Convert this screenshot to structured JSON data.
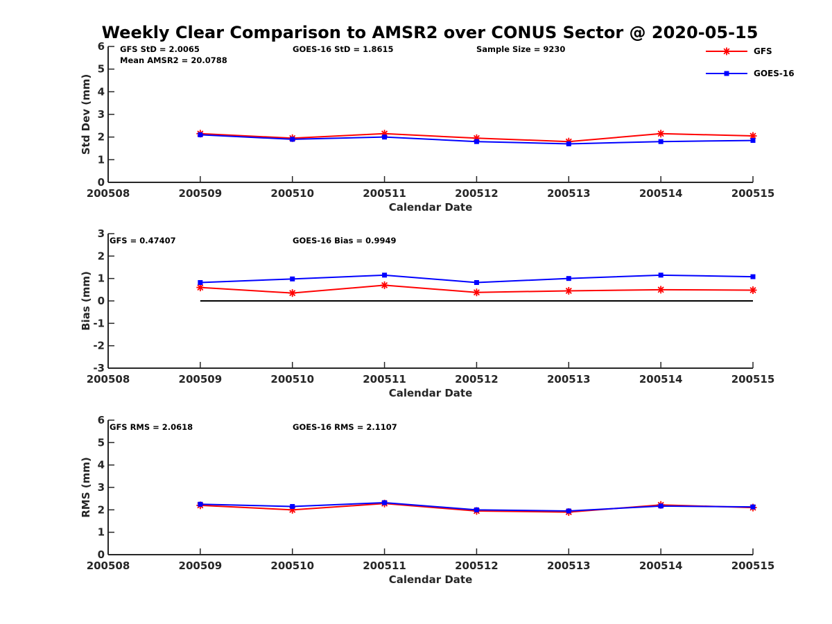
{
  "chart_data": {
    "type": "line",
    "title": "Weekly Clear Comparison to AMSR2 over CONUS Sector @ 2020-05-15",
    "legend": {
      "placement": "top-right",
      "entries": [
        {
          "name": "GFS",
          "color": "#ff0000",
          "marker": "asterisk"
        },
        {
          "name": "GOES-16",
          "color": "#0000ff",
          "marker": "square"
        }
      ]
    },
    "panels": [
      {
        "id": "stddev",
        "ylabel": "Std Dev (mm)",
        "xlabel": "Calendar Date",
        "ylim": [
          0,
          6
        ],
        "yticks": [
          "0",
          "1",
          "2",
          "3",
          "4",
          "5",
          "6"
        ],
        "xticks": [
          "200508",
          "200509",
          "200510",
          "200511",
          "200512",
          "200513",
          "200514",
          "200515"
        ],
        "xlim": [
          0,
          7
        ],
        "zero_line": false,
        "annotations": [
          {
            "text": "GFS StD = 2.0065",
            "col": "a"
          },
          {
            "text": "GOES-16 StD = 1.8615",
            "col": "b"
          },
          {
            "text": "Sample Size = 9230",
            "col": "c"
          },
          {
            "text": "Mean AMSR2 = 20.0788",
            "col": "a2"
          }
        ],
        "series": [
          {
            "name": "GFS",
            "color": "#ff0000",
            "marker": "asterisk",
            "x": [
              1,
              2,
              3,
              4,
              5,
              6,
              7
            ],
            "values": [
              2.15,
              1.95,
              2.15,
              1.95,
              1.8,
              2.15,
              2.05
            ]
          },
          {
            "name": "GOES-16",
            "color": "#0000ff",
            "marker": "square",
            "x": [
              1,
              2,
              3,
              4,
              5,
              6,
              7
            ],
            "values": [
              2.1,
              1.9,
              2.0,
              1.8,
              1.7,
              1.8,
              1.85
            ]
          }
        ]
      },
      {
        "id": "bias",
        "ylabel": "Bias (mm)",
        "xlabel": "Calendar Date",
        "ylim": [
          -3,
          3
        ],
        "yticks": [
          "-3",
          "-2",
          "-1",
          "0",
          "1",
          "2",
          "3"
        ],
        "xticks": [
          "200508",
          "200509",
          "200510",
          "200511",
          "200512",
          "200513",
          "200514",
          "200515"
        ],
        "xlim": [
          0,
          7
        ],
        "zero_line": true,
        "annotations": [
          {
            "text": "GFS = 0.47407",
            "col": "a"
          },
          {
            "text": "GOES-16 Bias  = 0.9949",
            "col": "b"
          }
        ],
        "series": [
          {
            "name": "GFS",
            "color": "#ff0000",
            "marker": "asterisk",
            "x": [
              1,
              2,
              3,
              4,
              5,
              6,
              7
            ],
            "values": [
              0.6,
              0.35,
              0.7,
              0.38,
              0.45,
              0.5,
              0.48
            ]
          },
          {
            "name": "GOES-16",
            "color": "#0000ff",
            "marker": "square",
            "x": [
              1,
              2,
              3,
              4,
              5,
              6,
              7
            ],
            "values": [
              0.82,
              0.98,
              1.15,
              0.82,
              1.0,
              1.15,
              1.08
            ]
          }
        ]
      },
      {
        "id": "rms",
        "ylabel": "RMS (mm)",
        "xlabel": "Calendar Date",
        "ylim": [
          0,
          6
        ],
        "yticks": [
          "0",
          "1",
          "2",
          "3",
          "4",
          "5",
          "6"
        ],
        "xticks": [
          "200508",
          "200509",
          "200510",
          "200511",
          "200512",
          "200513",
          "200514",
          "200515"
        ],
        "xlim": [
          0,
          7
        ],
        "zero_line": false,
        "annotations": [
          {
            "text": "GFS RMS = 2.0618",
            "col": "a"
          },
          {
            "text": "GOES-16 RMS = 2.1107",
            "col": "b"
          }
        ],
        "series": [
          {
            "name": "GFS",
            "color": "#ff0000",
            "marker": "asterisk",
            "x": [
              1,
              2,
              3,
              4,
              5,
              6,
              7
            ],
            "values": [
              2.2,
              2.0,
              2.28,
              1.95,
              1.9,
              2.22,
              2.1
            ]
          },
          {
            "name": "GOES-16",
            "color": "#0000ff",
            "marker": "square",
            "x": [
              1,
              2,
              3,
              4,
              5,
              6,
              7
            ],
            "values": [
              2.25,
              2.15,
              2.32,
              2.0,
              1.95,
              2.17,
              2.13
            ]
          }
        ]
      }
    ]
  }
}
